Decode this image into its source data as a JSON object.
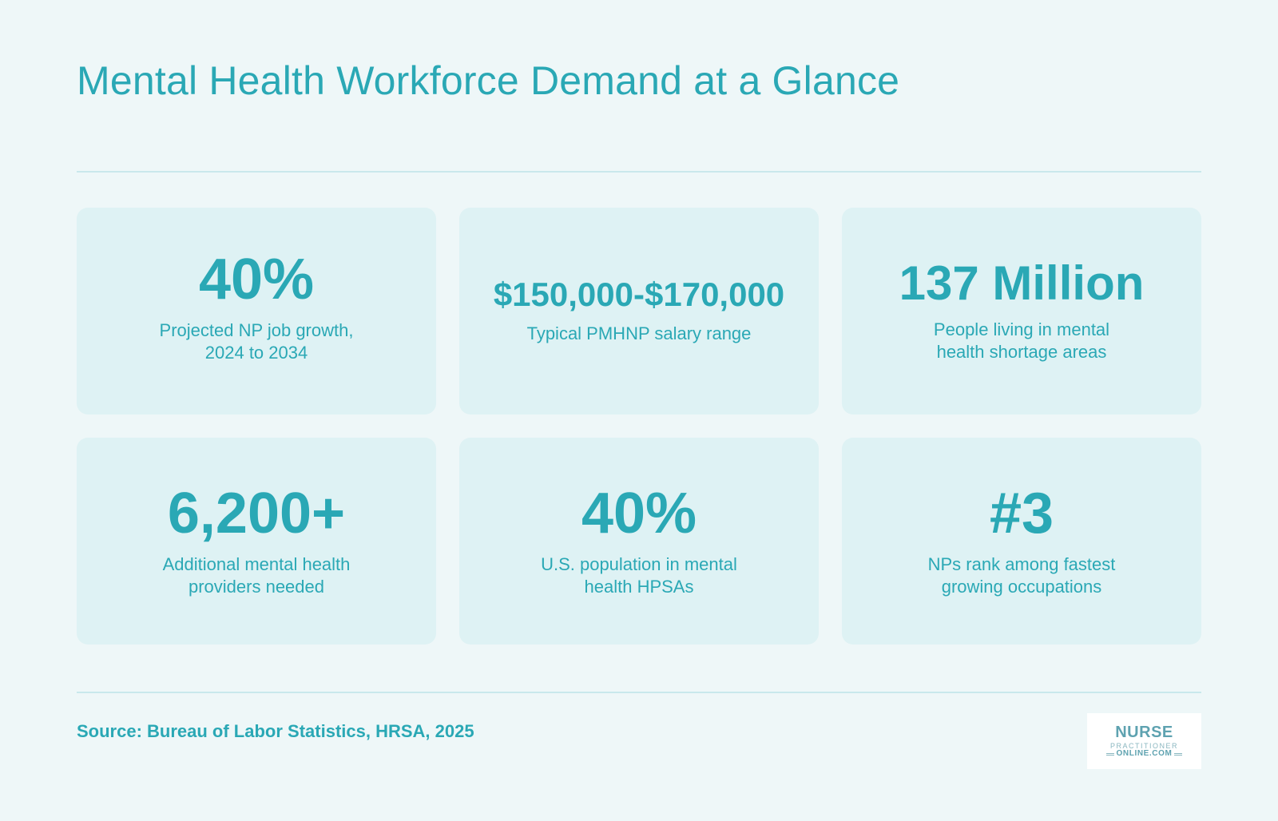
{
  "header": {
    "title": "Mental Health Workforce Demand at a Glance"
  },
  "stats": [
    {
      "value": "40%",
      "label": "Projected NP job growth, 2024 to 2034"
    },
    {
      "value": "$150,000-$170,000",
      "label": "Typical PMHNP salary range"
    },
    {
      "value": "137 Million",
      "label": "People living in mental health shortage areas"
    },
    {
      "value": "6,200+",
      "label": "Additional mental health providers needed"
    },
    {
      "value": "40%",
      "label": "U.S. population in mental health HPSAs"
    },
    {
      "value": "#3",
      "label": "NPs rank among fastest growing occupations"
    }
  ],
  "footer": {
    "source": "Source: Bureau of Labor Statistics, HRSA, 2025",
    "logo": {
      "line1": "NURSE",
      "line2": "PRACTITIONER",
      "line3": "ONLINE.COM"
    }
  },
  "colors": {
    "accent": "#2aa8b5",
    "background": "#eef7f8",
    "card": "#def2f4",
    "divider": "#c9e8ec"
  }
}
